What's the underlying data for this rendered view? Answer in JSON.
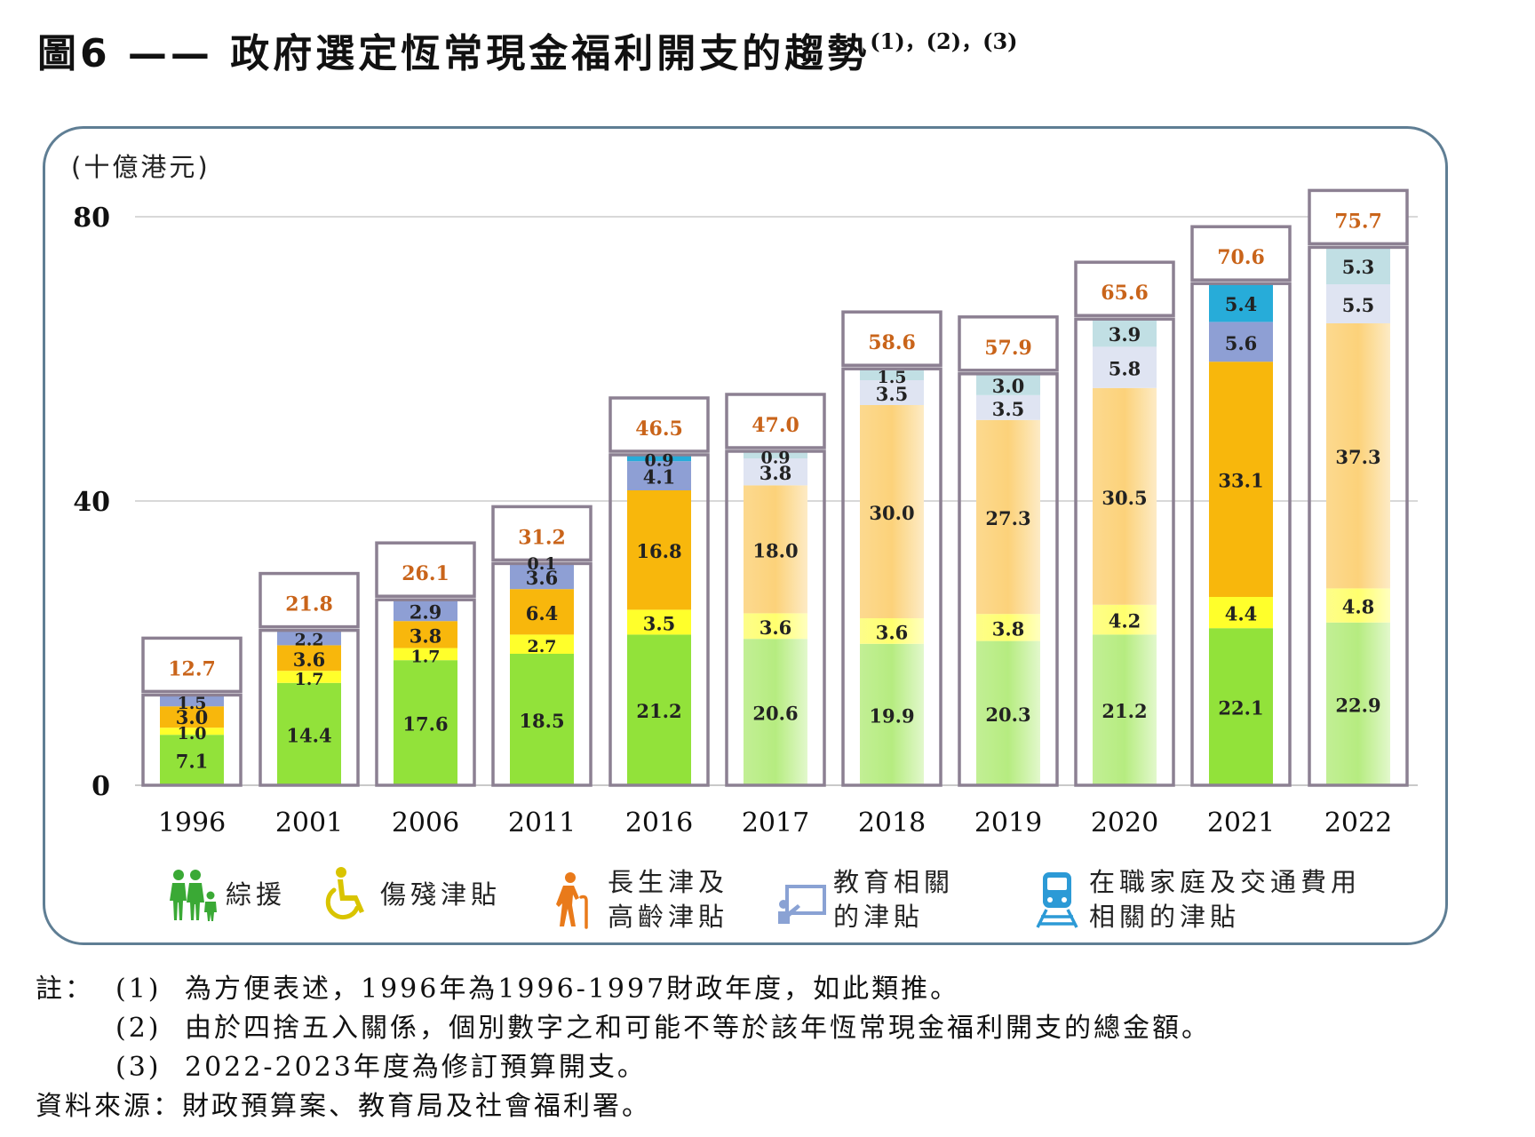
{
  "title": {
    "main": "圖6 —— 政府選定恆常現金福利開支的趨勢",
    "superscript": "(1)，(2)，(3)"
  },
  "chart_data": {
    "type": "bar",
    "stacked": true,
    "unit_label": "(十億港元)",
    "ylim": [
      0,
      80
    ],
    "yticks": [
      0,
      40,
      80
    ],
    "grid": true,
    "categories": [
      "1996",
      "2001",
      "2006",
      "2011",
      "2016",
      "2017",
      "2018",
      "2019",
      "2020",
      "2021",
      "2022"
    ],
    "series": [
      {
        "name": "綜援",
        "values": [
          7.1,
          14.4,
          17.6,
          18.5,
          21.2,
          20.6,
          19.9,
          20.3,
          21.2,
          22.1,
          22.9
        ]
      },
      {
        "name": "傷殘津貼",
        "values": [
          1.0,
          1.7,
          1.7,
          2.7,
          3.5,
          3.6,
          3.6,
          3.8,
          4.2,
          4.4,
          4.8
        ]
      },
      {
        "name": "長生津及高齡津貼",
        "values": [
          3.0,
          3.6,
          3.8,
          6.4,
          16.8,
          18.0,
          30.0,
          27.3,
          30.5,
          33.1,
          37.3
        ]
      },
      {
        "name": "教育相關的津貼",
        "values": [
          1.5,
          2.2,
          2.9,
          3.6,
          4.1,
          3.8,
          3.5,
          3.5,
          5.8,
          5.6,
          5.5
        ]
      },
      {
        "name": "在職家庭及交通費用相關的津貼",
        "values": [
          null,
          null,
          null,
          0.1,
          0.9,
          0.9,
          1.5,
          3.0,
          3.9,
          5.4,
          5.3
        ]
      }
    ],
    "totals": [
      12.7,
      21.8,
      26.1,
      31.2,
      46.5,
      47.0,
      58.6,
      57.9,
      65.6,
      70.6,
      75.7
    ],
    "light_years": [
      "2017",
      "2018",
      "2019",
      "2020",
      "2022"
    ],
    "colors": {
      "cssa": "#92e23a",
      "disability": "#ffff2b",
      "oaa": "#f8b70c",
      "education": "#8e9fd4",
      "working": "#27acd9",
      "cssa_light": "#cdf3a6",
      "disability_light": "#ffff9e",
      "oaa_light": "#fde0a2",
      "education_light": "#dfe4f2",
      "working_light": "#c1dfe4",
      "total_label": "#c9641a",
      "box_border": "#8c8092"
    }
  },
  "legend": [
    {
      "label_lines": [
        "綜援"
      ],
      "icon": "family-icon"
    },
    {
      "label_lines": [
        "傷殘津貼"
      ],
      "icon": "wheelchair-icon"
    },
    {
      "label_lines": [
        "長生津及",
        "高齡津貼"
      ],
      "icon": "elderly-icon"
    },
    {
      "label_lines": [
        "教育相關",
        "的津貼"
      ],
      "icon": "teacher-icon"
    },
    {
      "label_lines": [
        "在職家庭及交通費用",
        "相關的津貼"
      ],
      "icon": "train-icon"
    }
  ],
  "notes": {
    "label": "註：",
    "items": [
      {
        "num": "(1)",
        "text": "為方便表述，1996年為1996-1997財政年度，如此類推。"
      },
      {
        "num": "(2)",
        "text": "由於四捨五入關係，個別數字之和可能不等於該年恆常現金福利開支的總金額。"
      },
      {
        "num": "(3)",
        "text": "2022-2023年度為修訂預算開支。"
      }
    ],
    "source": "資料來源：財政預算案、教育局及社會福利署。"
  }
}
